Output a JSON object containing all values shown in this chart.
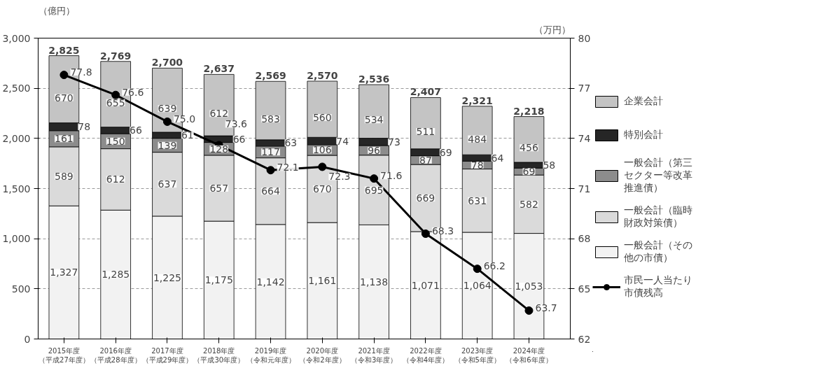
{
  "chart_data": {
    "type": "bar",
    "stacked": true,
    "ylabel": "（億円）",
    "y2label": "（万円）",
    "categories": [
      "2015年度（平成27年度）",
      "2016年度（平成28年度）",
      "2017年度（平成29年度）",
      "2018年度（平成30年度）",
      "2019年度（令和元年度）",
      "2020年度（令和2年度）",
      "2021年度（令和3年度）",
      "2022年度（令和4年度）",
      "2023年度（令和5年度）",
      "2024年度（令和6年度）"
    ],
    "series": [
      {
        "name": "一般会計（その他の市債）",
        "color": "#f2f2f2",
        "values": [
          1327,
          1285,
          1225,
          1175,
          1142,
          1161,
          1138,
          1071,
          1064,
          1053
        ],
        "value_labels": [
          "1,327",
          "1,285",
          "1,225",
          "1,175",
          "1,142",
          "1,161",
          "1,138",
          "1,071",
          "1,064",
          "1,053"
        ]
      },
      {
        "name": "一般会計（臨時財政対策債）",
        "color": "#dadada",
        "values": [
          589,
          612,
          637,
          657,
          664,
          670,
          695,
          669,
          631,
          582
        ],
        "value_labels": [
          "589",
          "612",
          "637",
          "657",
          "664",
          "670",
          "695",
          "669",
          "631",
          "582"
        ]
      },
      {
        "name": "一般会計（第三セクター等改革推進債）",
        "color": "#8c8c8c",
        "values": [
          161,
          150,
          139,
          128,
          117,
          106,
          96,
          87,
          78,
          69
        ],
        "value_labels": [
          "161",
          "150",
          "139",
          "128",
          "117",
          "106",
          "96",
          "87",
          "78",
          "69"
        ]
      },
      {
        "name": "特別会計",
        "color": "#262626",
        "values": [
          78,
          66,
          61,
          66,
          63,
          74,
          73,
          69,
          64,
          58
        ],
        "value_labels": [
          "78",
          "66",
          "61",
          "66",
          "63",
          "74",
          "73",
          "69",
          "64",
          "58"
        ]
      },
      {
        "name": "企業会計",
        "color": "#c4c4c4",
        "values": [
          670,
          655,
          639,
          612,
          583,
          560,
          534,
          511,
          484,
          456
        ],
        "value_labels": [
          "670",
          "655",
          "639",
          "612",
          "583",
          "560",
          "534",
          "511",
          "484",
          "456"
        ]
      },
      {
        "name": "市民一人当たり市債残高",
        "type": "line",
        "axis": "y2",
        "color": "#000000",
        "marker": "circle",
        "values": [
          77.8,
          76.6,
          75.0,
          73.6,
          72.1,
          72.3,
          71.6,
          68.3,
          66.2,
          63.7
        ],
        "value_labels": [
          "77.8",
          "76.6",
          "75.0",
          "73.6",
          "72.1",
          "72.3",
          "71.6",
          "68.3",
          "66.2",
          "63.7"
        ]
      }
    ],
    "totals": [
      "2,825",
      "2,769",
      "2,700",
      "2,637",
      "2,569",
      "2,570",
      "2,536",
      "2,407",
      "2,321",
      "2,218"
    ],
    "ylim": [
      0,
      3000
    ],
    "yticks": [
      0,
      {
        "value": 500,
        "label": "500"
      },
      {
        "value": 1000,
        "label": "1,000"
      },
      {
        "value": 1500,
        "label": "1,500"
      },
      {
        "value": 2000,
        "label": "2,000"
      },
      {
        "value": 2500,
        "label": "2,500"
      },
      {
        "value": 3000,
        "label": "3,000"
      }
    ],
    "y2lim": [
      62,
      80
    ],
    "y2ticks": [
      62,
      65,
      68,
      71,
      74,
      77,
      80
    ],
    "grid": "y",
    "legend": "right"
  }
}
